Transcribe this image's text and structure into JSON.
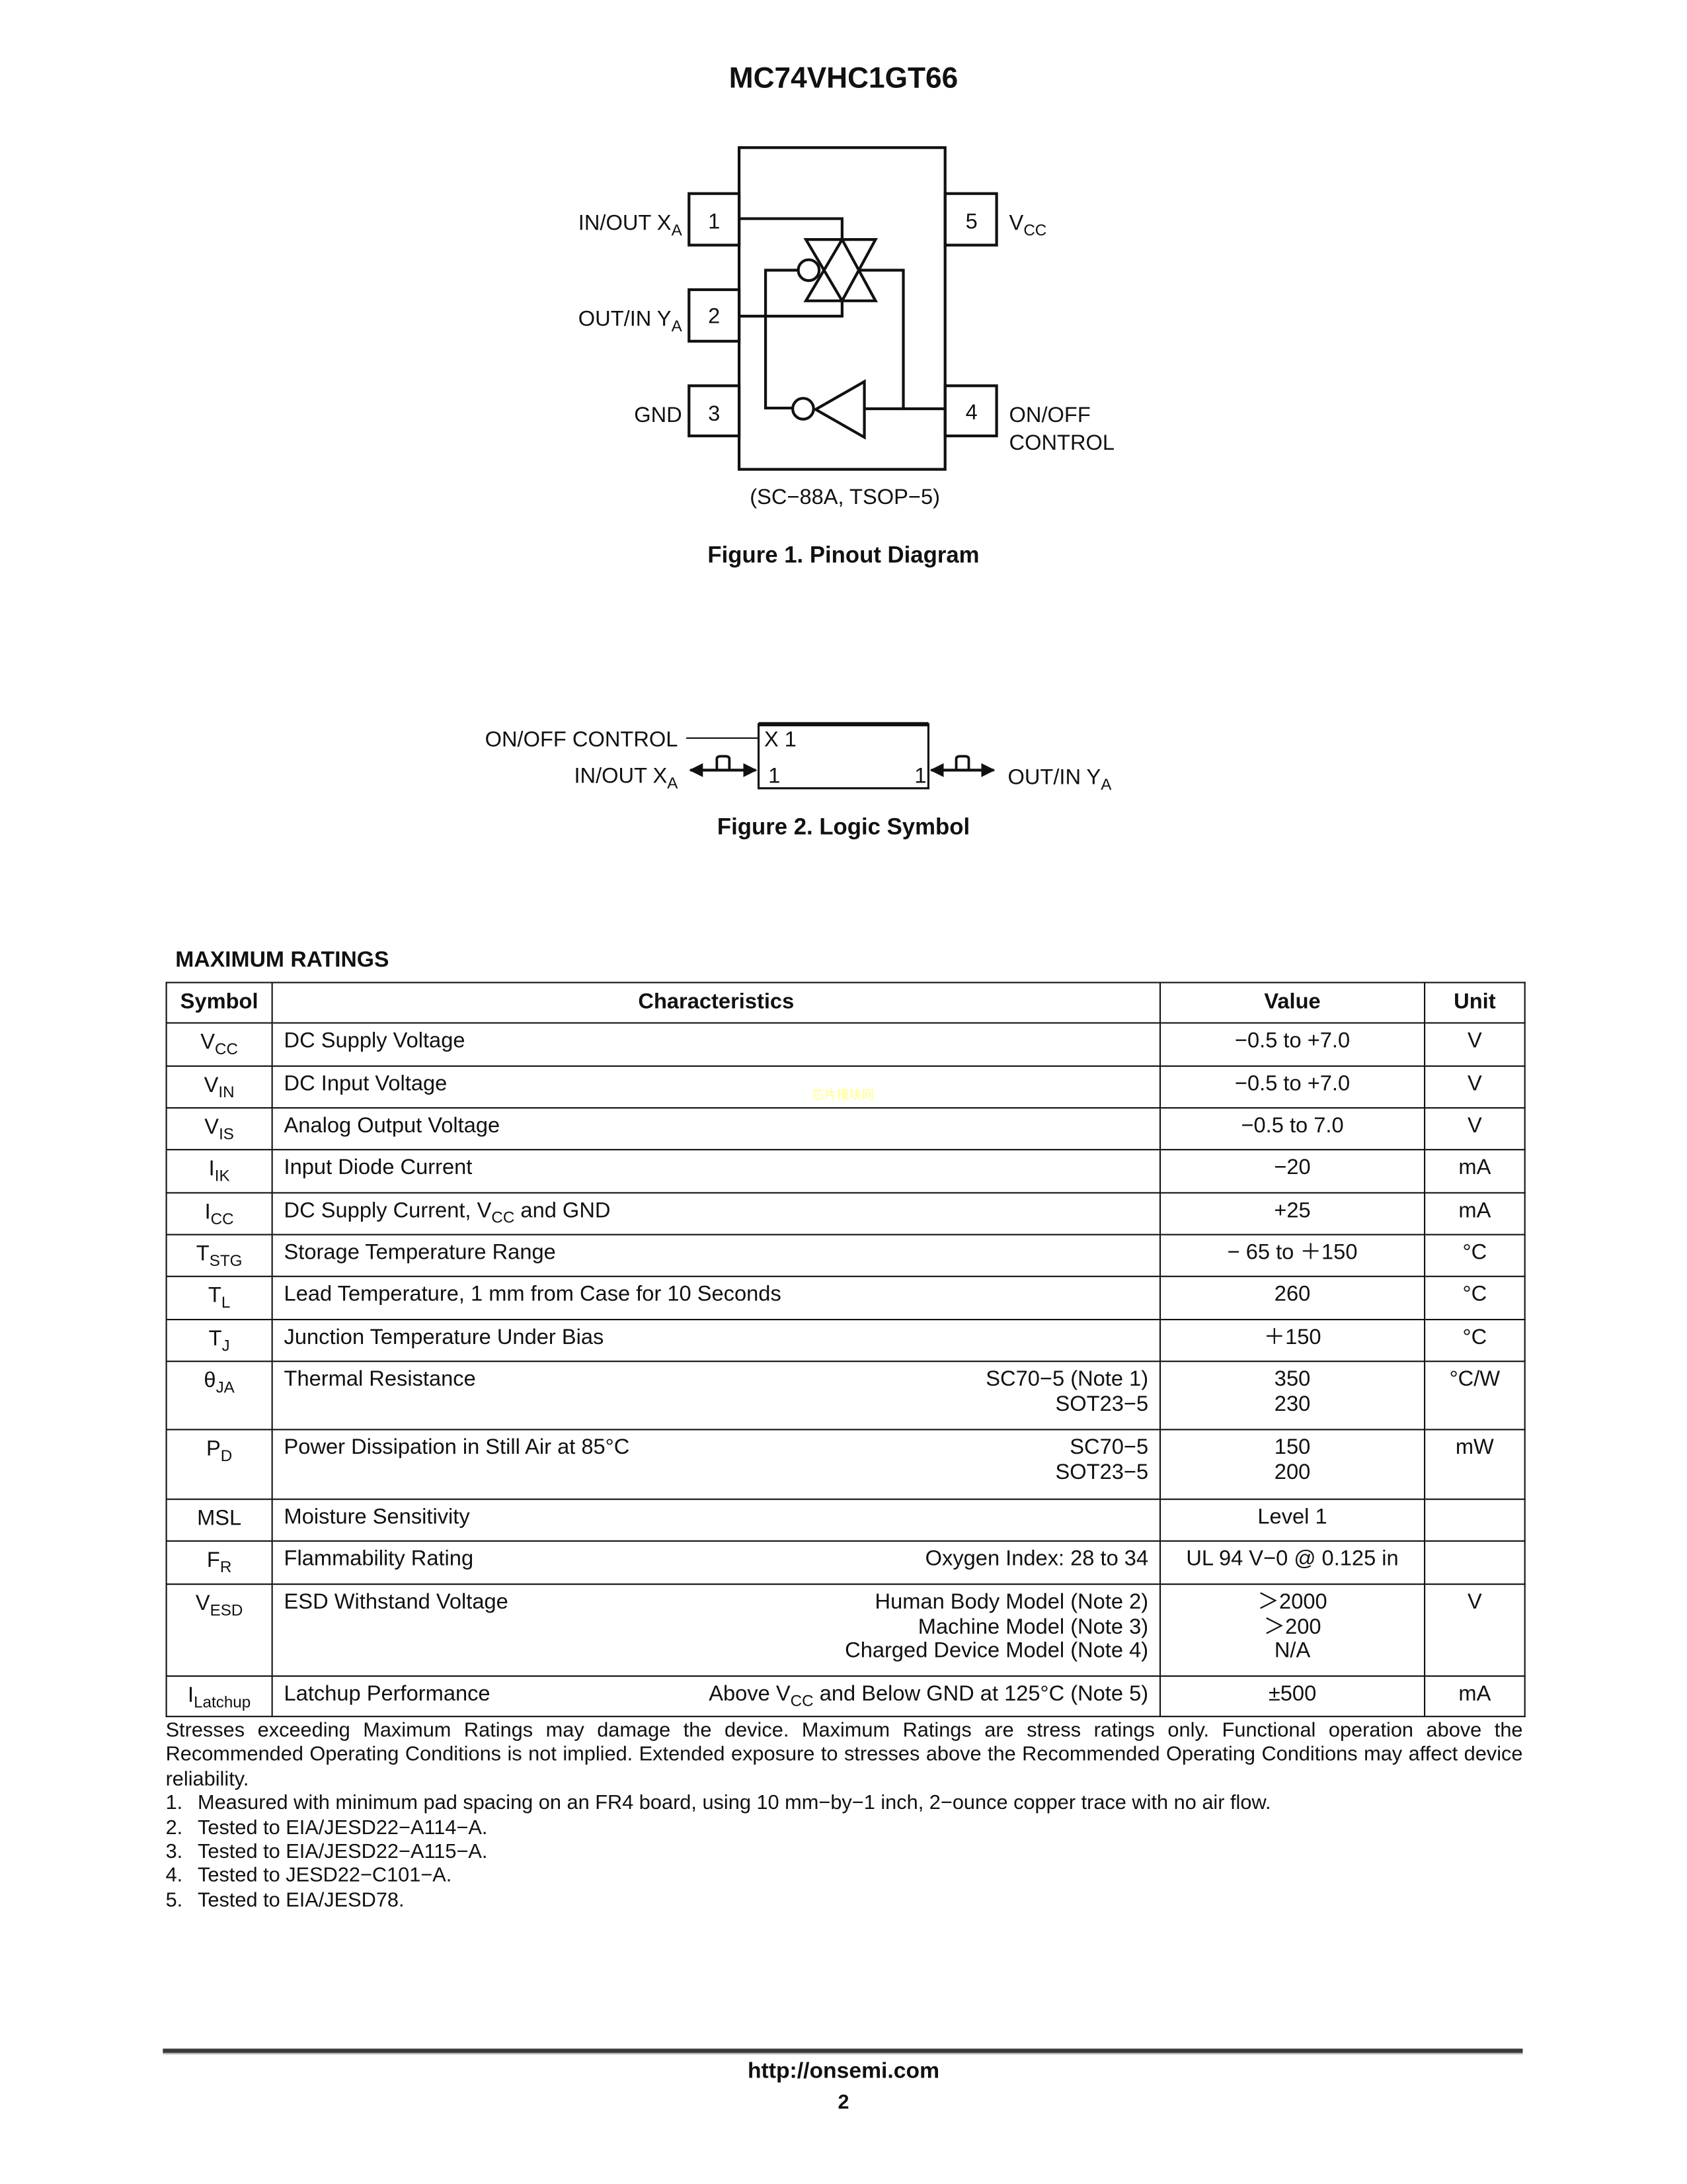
{
  "header": {
    "title": "MC74VHC1GT66"
  },
  "watermark": "芯片模块网",
  "figure1": {
    "pins_left": [
      {
        "label": "IN/OUT X",
        "sub": "A",
        "num": "1"
      },
      {
        "label": "OUT/IN Y",
        "sub": "A",
        "num": "2"
      },
      {
        "label": "GND",
        "sub": "",
        "num": "3"
      }
    ],
    "pins_right": [
      {
        "label": "V",
        "sub": "CC",
        "num": "5"
      },
      {
        "label": "ON/OFF",
        "label2": "CONTROL",
        "num": "4"
      }
    ],
    "package": "(SC−88A, TSOP−5)",
    "caption": "Figure 1. Pinout Diagram"
  },
  "figure2": {
    "control_label": "ON/OFF CONTROL",
    "left_label": "IN/OUT X",
    "left_sub": "A",
    "right_label": "OUT/IN Y",
    "right_sub": "A",
    "box_label": "X 1",
    "left_pin": "1",
    "right_pin": "1",
    "caption": "Figure 2. Logic Symbol"
  },
  "ratings": {
    "heading": "MAXIMUM RATINGS",
    "columns": [
      "Symbol",
      "Characteristics",
      "Value",
      "Unit"
    ],
    "rows": [
      {
        "sym": "V",
        "sub": "CC",
        "char": {
          "pre": "DC Supply Voltage"
        },
        "cond": [],
        "value": [
          "−0.5 to +7.0"
        ],
        "unit": "V"
      },
      {
        "sym": "V",
        "sub": "IN",
        "char": {
          "pre": "DC Input Voltage"
        },
        "cond": [],
        "value": [
          "−0.5 to +7.0"
        ],
        "unit": "V"
      },
      {
        "sym": "V",
        "sub": "IS",
        "char": {
          "pre": "Analog Output Voltage"
        },
        "cond": [],
        "value": [
          "−0.5 to 7.0"
        ],
        "unit": "V"
      },
      {
        "sym": "I",
        "sub": "IK",
        "char": {
          "pre": "Input Diode Current"
        },
        "cond": [],
        "value": [
          "−20"
        ],
        "unit": "mA"
      },
      {
        "sym": "I",
        "sub": "CC",
        "char": {
          "pre": "DC Supply Current, V",
          "sub": "CC",
          "post": " and GND"
        },
        "cond": [],
        "value": [
          "+25"
        ],
        "unit": "mA"
      },
      {
        "sym": "T",
        "sub": "STG",
        "char": {
          "pre": "Storage Temperature Range"
        },
        "cond": [],
        "value": [
          "− 65 to ＋150"
        ],
        "unit": "°C"
      },
      {
        "sym": "T",
        "sub": "L",
        "char": {
          "pre": "Lead Temperature, 1 mm from Case for 10 Seconds"
        },
        "cond": [],
        "value": [
          "260"
        ],
        "unit": "°C"
      },
      {
        "sym": "T",
        "sub": "J",
        "char": {
          "pre": "Junction Temperature Under Bias"
        },
        "cond": [],
        "value": [
          "＋150"
        ],
        "unit": "°C"
      },
      {
        "sym": "θ",
        "sub": "JA",
        "char": {
          "pre": "Thermal Resistance"
        },
        "cond": [
          {
            "pre": "SC70−5 (Note 1)"
          },
          {
            "pre": "SOT23−5"
          }
        ],
        "value": [
          "350",
          "230"
        ],
        "unit": "°C/W"
      },
      {
        "sym": "P",
        "sub": "D",
        "char": {
          "pre": "Power Dissipation in Still Air at 85°C"
        },
        "cond": [
          {
            "pre": "SC70−5"
          },
          {
            "pre": "SOT23−5"
          }
        ],
        "value": [
          "150",
          "200"
        ],
        "unit": "mW"
      },
      {
        "sym": "MSL",
        "sub": "",
        "char": {
          "pre": "Moisture Sensitivity"
        },
        "cond": [],
        "value": [
          "Level 1"
        ],
        "unit": ""
      },
      {
        "sym": "F",
        "sub": "R",
        "char": {
          "pre": "Flammability Rating"
        },
        "cond": [
          {
            "pre": "Oxygen Index: 28 to 34"
          }
        ],
        "value": [
          "UL 94 V−0 @ 0.125 in"
        ],
        "unit": ""
      },
      {
        "sym": "V",
        "sub": "ESD",
        "char": {
          "pre": "ESD Withstand Voltage"
        },
        "cond": [
          {
            "pre": "Human Body Model (Note 2)"
          },
          {
            "pre": "Machine Model (Note 3)"
          },
          {
            "pre": "Charged Device Model (Note 4)"
          }
        ],
        "value": [
          "＞2000",
          "＞200",
          "N/A"
        ],
        "unit": "V"
      },
      {
        "sym": "I",
        "sub": "Latchup",
        "char": {
          "pre": "Latchup Performance"
        },
        "cond": [
          {
            "pre": "Above V",
            "sub": "CC",
            "post": " and Below GND at 125°C (Note 5)"
          }
        ],
        "value": [
          "±500"
        ],
        "unit": "mA"
      }
    ]
  },
  "notes": {
    "stress": "Stresses exceeding Maximum Ratings may damage the device. Maximum Ratings are stress ratings only. Functional operation above the Recommended Operating Conditions is not implied. Extended exposure to stresses above the Recommended Operating Conditions may affect device reliability.",
    "items": [
      {
        "num": "1.",
        "text": "Measured with minimum pad spacing on an FR4 board, using 10 mm−by−1 inch, 2−ounce copper trace with no air flow."
      },
      {
        "num": "2.",
        "text": "Tested to EIA/JESD22−A114−A."
      },
      {
        "num": "3.",
        "text": "Tested to EIA/JESD22−A115−A."
      },
      {
        "num": "4.",
        "text": "Tested to JESD22−C101−A."
      },
      {
        "num": "5.",
        "text": "Tested to EIA/JESD78."
      }
    ]
  },
  "footer": {
    "url": "http://onsemi.com",
    "page": "2"
  }
}
